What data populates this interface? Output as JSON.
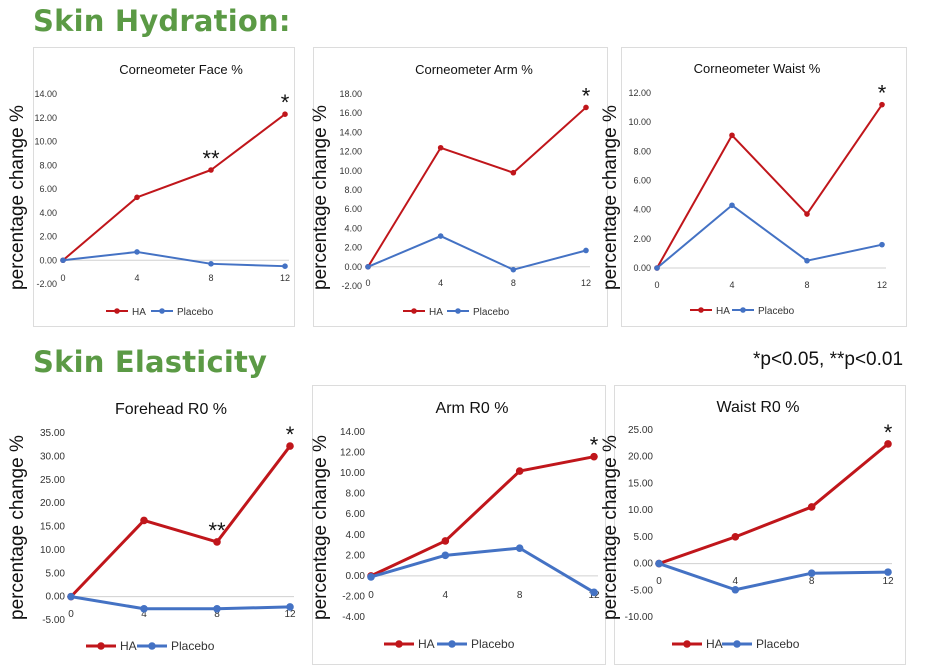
{
  "sections": {
    "hydration_title": "Skin Hydration:",
    "elasticity_title": "Skin Elasticity",
    "significance_note": "*p<0.05, **p<0.01"
  },
  "y_axis_label": "percentage change %",
  "colors": {
    "ha": "#c0161b",
    "placebo": "#4472c4",
    "section": "#5b9a45"
  },
  "chart_data": [
    {
      "type": "line",
      "title": "Corneometer Face %",
      "categories": [
        "0",
        "4",
        "8",
        "12"
      ],
      "ylim": [
        -2,
        14
      ],
      "yticks": [
        "-2.00",
        "0.00",
        "2.00",
        "4.00",
        "6.00",
        "8.00",
        "10.00",
        "12.00",
        "14.00"
      ],
      "series": [
        {
          "name": "HA",
          "values": [
            0,
            5.3,
            7.6,
            12.3
          ]
        },
        {
          "name": "Placebo",
          "values": [
            0,
            0.7,
            -0.3,
            -0.5
          ]
        }
      ],
      "annotations": [
        "",
        "",
        "**",
        "*"
      ]
    },
    {
      "type": "line",
      "title": "Corneometer Arm %",
      "categories": [
        "0",
        "4",
        "8",
        "12"
      ],
      "ylim": [
        -2,
        18
      ],
      "yticks": [
        "-2.00",
        "0.00",
        "2.00",
        "4.00",
        "6.00",
        "8.00",
        "10.00",
        "12.00",
        "14.00",
        "16.00",
        "18.00"
      ],
      "series": [
        {
          "name": "HA",
          "values": [
            0,
            12.4,
            9.8,
            16.6
          ]
        },
        {
          "name": "Placebo",
          "values": [
            0,
            3.2,
            -0.3,
            1.7
          ]
        }
      ],
      "annotations": [
        "",
        "",
        "",
        "*"
      ]
    },
    {
      "type": "line",
      "title": "Corneometer Waist %",
      "categories": [
        "0",
        "4",
        "8",
        "12"
      ],
      "ylim": [
        0,
        12
      ],
      "yticks": [
        "0.00",
        "2.00",
        "4.00",
        "6.00",
        "8.00",
        "10.00",
        "12.00"
      ],
      "series": [
        {
          "name": "HA",
          "values": [
            0,
            9.1,
            3.7,
            11.2
          ]
        },
        {
          "name": "Placebo",
          "values": [
            0,
            4.3,
            0.5,
            1.6
          ]
        }
      ],
      "annotations": [
        "",
        "",
        "",
        "*"
      ]
    },
    {
      "type": "line",
      "title": "Forehead R0 %",
      "categories": [
        "0",
        "4",
        "8",
        "12"
      ],
      "ylim": [
        -5,
        35
      ],
      "yticks": [
        "-5.00",
        "0.00",
        "5.00",
        "10.00",
        "15.00",
        "20.00",
        "25.00",
        "30.00",
        "35.00"
      ],
      "series": [
        {
          "name": "HA",
          "values": [
            0,
            16.3,
            11.7,
            32.2
          ]
        },
        {
          "name": "Placebo",
          "values": [
            0,
            -2.6,
            -2.6,
            -2.2
          ]
        }
      ],
      "annotations": [
        "",
        "",
        "**",
        "*"
      ]
    },
    {
      "type": "line",
      "title": "Arm R0 %",
      "categories": [
        "0",
        "4",
        "8",
        "12"
      ],
      "ylim": [
        -4,
        14
      ],
      "yticks": [
        "-4.00",
        "-2.00",
        "0.00",
        "2.00",
        "4.00",
        "6.00",
        "8.00",
        "10.00",
        "12.00",
        "14.00"
      ],
      "series": [
        {
          "name": "HA",
          "values": [
            0,
            3.4,
            10.2,
            11.6
          ]
        },
        {
          "name": "Placebo",
          "values": [
            -0.1,
            2.0,
            2.7,
            -1.6
          ]
        }
      ],
      "annotations": [
        "",
        "",
        "",
        "*"
      ]
    },
    {
      "type": "line",
      "title": "Waist R0 %",
      "categories": [
        "0",
        "4",
        "8",
        "12"
      ],
      "ylim": [
        -10,
        25
      ],
      "yticks": [
        "-10.00",
        "-5.00",
        "0.00",
        "5.00",
        "10.00",
        "15.00",
        "20.00",
        "25.00"
      ],
      "series": [
        {
          "name": "HA",
          "values": [
            0,
            5.0,
            10.6,
            22.4
          ]
        },
        {
          "name": "Placebo",
          "values": [
            0,
            -4.9,
            -1.8,
            -1.6
          ]
        }
      ],
      "annotations": [
        "",
        "",
        "",
        "*"
      ]
    }
  ]
}
